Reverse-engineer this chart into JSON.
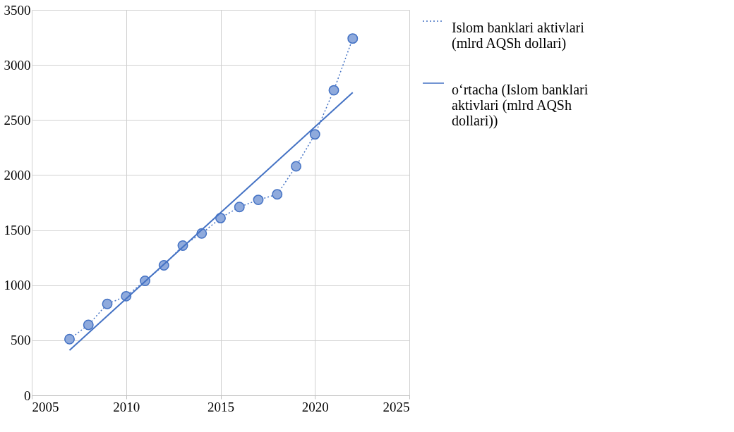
{
  "chart_data": {
    "type": "line",
    "xlim": [
      2005,
      2025
    ],
    "xticks": [
      2005,
      2010,
      2015,
      2020,
      2025
    ],
    "ylim": [
      0,
      3500
    ],
    "yticks": [
      0,
      500,
      1000,
      1500,
      2000,
      2500,
      3000,
      3500
    ],
    "grid": true,
    "legend": "right",
    "series": [
      {
        "name": "Islom banklari aktivlari (mlrd  AQSh dollari)",
        "color": "#4472c4",
        "marker": "circle",
        "line_style": "dotted",
        "x": [
          2007,
          2008,
          2009,
          2010,
          2011,
          2012,
          2013,
          2014,
          2015,
          2016,
          2017,
          2018,
          2019,
          2020,
          2021,
          2022
        ],
        "values": [
          510,
          640,
          830,
          900,
          1040,
          1180,
          1360,
          1470,
          1610,
          1710,
          1775,
          1825,
          2080,
          2370,
          2770,
          3240
        ]
      },
      {
        "name": "oʻrtacha (Islom banklari aktivlari (mlrd AQSh dollari))",
        "color": "#4472c4",
        "marker": "none",
        "line_style": "solid",
        "type": "line",
        "x": [
          2007,
          2022
        ],
        "values": [
          410,
          2750
        ]
      }
    ]
  }
}
